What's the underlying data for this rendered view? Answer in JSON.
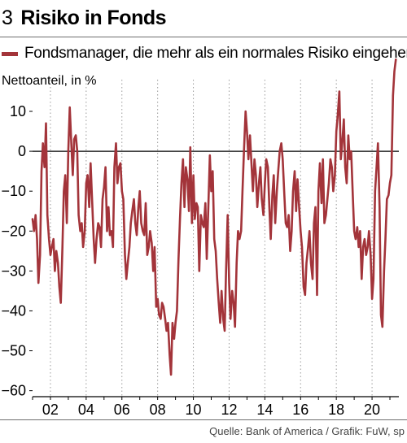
{
  "header": {
    "number": "3",
    "title": "Risiko in Fonds"
  },
  "chart_data": {
    "type": "line",
    "title": "Risiko in Fonds",
    "ylabel": "Nettoanteil, in %",
    "xlabel": "",
    "ylim": [
      -60,
      20
    ],
    "yticks": [
      10,
      0,
      -10,
      -20,
      -30,
      -40,
      -50,
      -60
    ],
    "xlim": [
      2001.0,
      2021.5
    ],
    "xticks": [
      2002,
      2004,
      2006,
      2008,
      2010,
      2012,
      2014,
      2016,
      2018,
      2020
    ],
    "xticklabels": [
      "02",
      "04",
      "06",
      "08",
      "10",
      "12",
      "14",
      "16",
      "18",
      "20"
    ],
    "grid": "vertical dotted",
    "zero_line": true,
    "legend_position": "top",
    "series": [
      {
        "name": "Fondsmanager, die mehr als ein normales Risiko eingehen",
        "color": "#a3343a",
        "x": [
          2001.0,
          2001.08,
          2001.17,
          2001.25,
          2001.33,
          2001.42,
          2001.5,
          2001.58,
          2001.67,
          2001.75,
          2001.83,
          2001.92,
          2002.0,
          2002.08,
          2002.17,
          2002.25,
          2002.33,
          2002.42,
          2002.5,
          2002.58,
          2002.67,
          2002.75,
          2002.83,
          2002.92,
          2003.0,
          2003.08,
          2003.17,
          2003.25,
          2003.33,
          2003.42,
          2003.5,
          2003.58,
          2003.67,
          2003.75,
          2003.83,
          2003.92,
          2004.0,
          2004.08,
          2004.17,
          2004.25,
          2004.33,
          2004.42,
          2004.5,
          2004.58,
          2004.67,
          2004.75,
          2004.83,
          2004.92,
          2005.0,
          2005.08,
          2005.17,
          2005.25,
          2005.33,
          2005.42,
          2005.5,
          2005.58,
          2005.67,
          2005.75,
          2005.83,
          2005.92,
          2006.0,
          2006.08,
          2006.17,
          2006.25,
          2006.33,
          2006.42,
          2006.5,
          2006.58,
          2006.67,
          2006.75,
          2006.83,
          2006.92,
          2007.0,
          2007.08,
          2007.17,
          2007.25,
          2007.33,
          2007.42,
          2007.5,
          2007.58,
          2007.67,
          2007.75,
          2007.83,
          2007.92,
          2008.0,
          2008.08,
          2008.17,
          2008.25,
          2008.33,
          2008.42,
          2008.5,
          2008.58,
          2008.67,
          2008.75,
          2008.83,
          2008.92,
          2009.0,
          2009.08,
          2009.17,
          2009.25,
          2009.33,
          2009.42,
          2009.5,
          2009.58,
          2009.67,
          2009.75,
          2009.83,
          2009.92,
          2010.0,
          2010.08,
          2010.17,
          2010.25,
          2010.33,
          2010.42,
          2010.5,
          2010.58,
          2010.67,
          2010.75,
          2010.83,
          2010.92,
          2011.0,
          2011.08,
          2011.17,
          2011.25,
          2011.33,
          2011.42,
          2011.5,
          2011.58,
          2011.67,
          2011.75,
          2011.83,
          2011.92,
          2012.0,
          2012.08,
          2012.17,
          2012.25,
          2012.33,
          2012.42,
          2012.5,
          2012.58,
          2012.67,
          2012.75,
          2012.83,
          2012.92,
          2013.0,
          2013.08,
          2013.17,
          2013.25,
          2013.33,
          2013.42,
          2013.5,
          2013.58,
          2013.67,
          2013.75,
          2013.83,
          2013.92,
          2014.0,
          2014.08,
          2014.17,
          2014.25,
          2014.33,
          2014.42,
          2014.5,
          2014.58,
          2014.67,
          2014.75,
          2014.83,
          2014.92,
          2015.0,
          2015.08,
          2015.17,
          2015.25,
          2015.33,
          2015.42,
          2015.5,
          2015.58,
          2015.67,
          2015.75,
          2015.83,
          2015.92,
          2016.0,
          2016.08,
          2016.17,
          2016.25,
          2016.33,
          2016.42,
          2016.5,
          2016.58,
          2016.67,
          2016.75,
          2016.83,
          2016.92,
          2017.0,
          2017.08,
          2017.17,
          2017.25,
          2017.33,
          2017.42,
          2017.5,
          2017.58,
          2017.67,
          2017.75,
          2017.83,
          2017.92,
          2018.0,
          2018.08,
          2018.17,
          2018.25,
          2018.33,
          2018.42,
          2018.5,
          2018.58,
          2018.67,
          2018.75,
          2018.83,
          2018.92,
          2019.0,
          2019.08,
          2019.17,
          2019.25,
          2019.33,
          2019.42,
          2019.5,
          2019.58,
          2019.67,
          2019.75,
          2019.83,
          2019.92,
          2020.0,
          2020.08,
          2020.17,
          2020.25,
          2020.33,
          2020.42,
          2020.5,
          2020.58,
          2020.67,
          2020.75,
          2020.83,
          2020.92,
          2021.0,
          2021.08,
          2021.17,
          2021.25,
          2021.33
        ],
        "values": [
          -17,
          -20,
          -16,
          -22,
          -33,
          -26,
          -5,
          2,
          -4,
          7,
          -16,
          -22,
          -26,
          -24,
          -22,
          -30,
          -25,
          -28,
          -34,
          -38,
          -24,
          -10,
          -6,
          -18,
          0,
          11,
          2,
          -6,
          3,
          4,
          0,
          -16,
          -20,
          -18,
          -24,
          -20,
          -8,
          -6,
          -14,
          -3,
          -12,
          -22,
          -28,
          -22,
          -18,
          -19,
          -24,
          -12,
          -9,
          -4,
          -20,
          -14,
          -21,
          -20,
          -24,
          -4,
          2,
          -8,
          -4,
          -3,
          -10,
          -12,
          -26,
          -32,
          -28,
          -24,
          -18,
          -15,
          -12,
          -18,
          -21,
          -14,
          -10,
          -18,
          -20,
          -21,
          -13,
          -26,
          -24,
          -20,
          -23,
          -30,
          -24,
          -39,
          -37,
          -41,
          -42,
          -38,
          -39,
          -42,
          -45,
          -43,
          -51,
          -56,
          -43,
          -47,
          -43,
          -40,
          -27,
          -17,
          -8,
          -2,
          -14,
          -4,
          -7,
          -15,
          1,
          -18,
          -6,
          -17,
          -13,
          -14,
          -30,
          -16,
          -18,
          -19,
          -13,
          -27,
          -15,
          -1,
          -10,
          -5,
          -22,
          -25,
          -32,
          -38,
          -43,
          -35,
          -42,
          -45,
          -30,
          -16,
          -33,
          -42,
          -35,
          -38,
          -44,
          -28,
          -20,
          -22,
          -20,
          -10,
          0,
          10,
          5,
          -2,
          4,
          -3,
          -10,
          -2,
          -6,
          -14,
          -8,
          -4,
          -12,
          -16,
          -8,
          -2,
          -4,
          -14,
          -22,
          -11,
          -6,
          -18,
          -10,
          -5,
          0,
          2,
          -2,
          -10,
          -18,
          -19,
          -16,
          -25,
          -20,
          -10,
          -5,
          -15,
          -7,
          -14,
          -20,
          -24,
          -34,
          -36,
          -28,
          -24,
          -20,
          -28,
          -32,
          -18,
          -14,
          -36,
          -10,
          -3,
          -13,
          -2,
          -18,
          -16,
          -12,
          -8,
          -2,
          -4,
          -10,
          -6,
          5,
          9,
          15,
          -2,
          2,
          8,
          -4,
          -8,
          4,
          -2,
          0,
          -11,
          -20,
          -22,
          -19,
          -24,
          -20,
          -32,
          -24,
          -22,
          -26,
          -24,
          -20,
          -26,
          -37,
          -32,
          -10,
          -4,
          2,
          -14,
          -41,
          -44,
          -30,
          -22,
          -12,
          -11,
          -8,
          -6,
          14,
          20,
          23
        ]
      }
    ]
  },
  "source": "Quelle: Bank of America / Grafik: FuW, sp"
}
